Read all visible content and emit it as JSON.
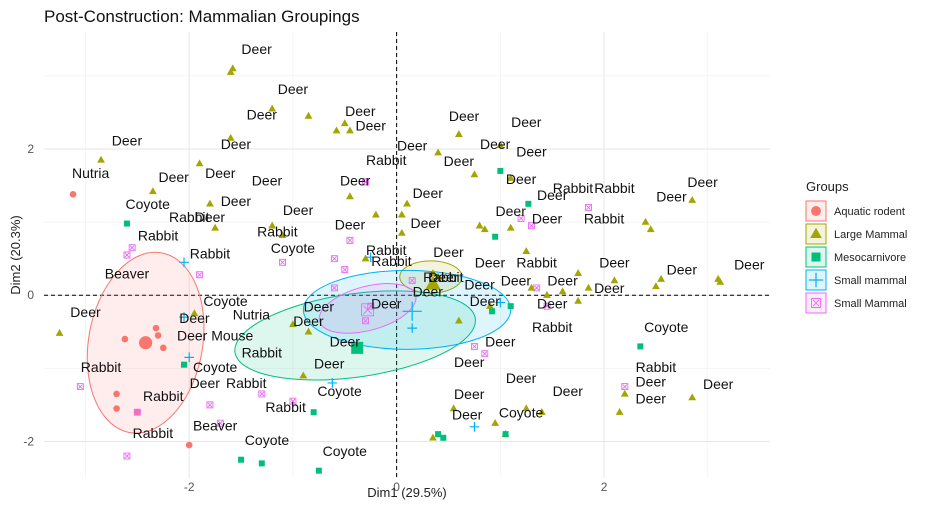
{
  "chart_data": {
    "type": "scatter",
    "title": "Post-Construction: Mammalian Groupings",
    "xlabel": "Dim1 (29.5%)",
    "ylabel": "Dim2 (20.3%)",
    "xlim": [
      -3.4,
      3.6
    ],
    "ylim": [
      -2.5,
      3.6
    ],
    "xticks": [
      -2,
      0,
      2
    ],
    "yticks": [
      -2,
      0,
      2
    ],
    "tick_labels": [
      "-2",
      "0",
      "2"
    ],
    "grid": true,
    "reference_lines": {
      "x": 0,
      "y": 0,
      "style": "dashed"
    },
    "legend": {
      "title": "Groups",
      "position": "right"
    },
    "groups": [
      {
        "name": "Aquatic rodent",
        "color": "#F8766D",
        "shape": "circle"
      },
      {
        "name": "Large Mammal",
        "color": "#A3A500",
        "shape": "triangle"
      },
      {
        "name": "Mesocarnivore",
        "color": "#00BF7D",
        "shape": "square"
      },
      {
        "name": "Small mammal",
        "color": "#00B0F6",
        "shape": "plus"
      },
      {
        "name": "Small Mammal",
        "color": "#E76BF3",
        "shape": "boxed-x"
      }
    ],
    "ellipses": [
      {
        "group": "Aquatic rodent",
        "center": [
          -2.42,
          -0.65
        ],
        "rx": 0.88,
        "ry": 0.78,
        "angle": -80
      },
      {
        "group": "Large Mammal",
        "center": [
          0.33,
          0.25
        ],
        "rx": 0.3,
        "ry": 0.22,
        "angle": 0
      },
      {
        "group": "Mesocarnivore",
        "center": [
          -0.4,
          -0.55
        ],
        "rx": 1.17,
        "ry": 0.57,
        "angle": -8
      },
      {
        "group": "Small mammal",
        "center": [
          0.1,
          -0.2
        ],
        "rx": 1.0,
        "ry": 0.54,
        "angle": 0
      },
      {
        "group": "Small Mammal",
        "center": [
          -0.28,
          -0.18
        ],
        "rx": 0.48,
        "ry": 0.3,
        "angle": -15
      }
    ],
    "centroids": [
      {
        "group": "Aquatic rodent",
        "x": -2.42,
        "y": -0.65
      },
      {
        "group": "Large Mammal",
        "x": 0.35,
        "y": 0.15
      },
      {
        "group": "Mesocarnivore",
        "x": -0.38,
        "y": -0.72
      },
      {
        "group": "Small mammal",
        "x": 0.15,
        "y": -0.22
      },
      {
        "group": "Small Mammal",
        "x": -0.28,
        "y": -0.2
      }
    ],
    "points": [
      {
        "g": 0,
        "x": -3.12,
        "y": 1.38
      },
      {
        "g": 0,
        "x": -2.62,
        "y": -0.6
      },
      {
        "g": 0,
        "x": -2.32,
        "y": -0.45
      },
      {
        "g": 0,
        "x": -2.3,
        "y": -0.55
      },
      {
        "g": 0,
        "x": -2.25,
        "y": -0.72
      },
      {
        "g": 0,
        "x": -2.7,
        "y": -1.35
      },
      {
        "g": 0,
        "x": -2.7,
        "y": -1.55
      },
      {
        "g": 0,
        "x": -2.5,
        "y": -1.6
      },
      {
        "g": 0,
        "x": -2.0,
        "y": -2.05
      },
      {
        "g": 1,
        "x": -1.58,
        "y": 3.1
      },
      {
        "g": 1,
        "x": -1.6,
        "y": 3.05
      },
      {
        "g": 1,
        "x": -1.2,
        "y": 2.55
      },
      {
        "g": 1,
        "x": -0.85,
        "y": 2.45
      },
      {
        "g": 1,
        "x": -1.6,
        "y": 2.15
      },
      {
        "g": 1,
        "x": -2.85,
        "y": 1.85
      },
      {
        "g": 1,
        "x": -1.9,
        "y": 1.8
      },
      {
        "g": 1,
        "x": -2.35,
        "y": 1.42
      },
      {
        "g": 1,
        "x": -1.8,
        "y": 1.25
      },
      {
        "g": 1,
        "x": -1.75,
        "y": 0.92
      },
      {
        "g": 1,
        "x": -1.2,
        "y": 0.95
      },
      {
        "g": 1,
        "x": -3.25,
        "y": -0.52
      },
      {
        "g": 1,
        "x": -1.95,
        "y": -0.25
      },
      {
        "g": 1,
        "x": -1.1,
        "y": 0.82
      },
      {
        "g": 1,
        "x": -0.5,
        "y": 2.35
      },
      {
        "g": 1,
        "x": -0.58,
        "y": 2.25
      },
      {
        "g": 1,
        "x": -0.45,
        "y": 2.25
      },
      {
        "g": 1,
        "x": -0.45,
        "y": 1.35
      },
      {
        "g": 1,
        "x": -0.2,
        "y": 1.1
      },
      {
        "g": 1,
        "x": -0.3,
        "y": 0.5
      },
      {
        "g": 1,
        "x": 0.05,
        "y": 1.1
      },
      {
        "g": 1,
        "x": 0.05,
        "y": 0.85
      },
      {
        "g": 1,
        "x": 0.1,
        "y": 1.25
      },
      {
        "g": 1,
        "x": 0.4,
        "y": 1.95
      },
      {
        "g": 1,
        "x": 0.6,
        "y": 2.2
      },
      {
        "g": 1,
        "x": 0.75,
        "y": 1.65
      },
      {
        "g": 1,
        "x": 0.8,
        "y": 0.95
      },
      {
        "g": 1,
        "x": 0.85,
        "y": 0.9
      },
      {
        "g": 1,
        "x": 1.0,
        "y": 2.05
      },
      {
        "g": 1,
        "x": 1.1,
        "y": 1.6
      },
      {
        "g": 1,
        "x": 1.1,
        "y": 0.92
      },
      {
        "g": 1,
        "x": 1.25,
        "y": 0.6
      },
      {
        "g": 1,
        "x": 1.3,
        "y": 0.1
      },
      {
        "g": 1,
        "x": 1.45,
        "y": 0.0
      },
      {
        "g": 1,
        "x": 1.6,
        "y": 0.05
      },
      {
        "g": 1,
        "x": 1.75,
        "y": 0.3
      },
      {
        "g": 1,
        "x": 1.75,
        "y": -0.08
      },
      {
        "g": 1,
        "x": 1.85,
        "y": 0.1
      },
      {
        "g": 1,
        "x": 2.1,
        "y": 0.2
      },
      {
        "g": 1,
        "x": 2.4,
        "y": 1.0
      },
      {
        "g": 1,
        "x": 2.45,
        "y": 0.9
      },
      {
        "g": 1,
        "x": 2.5,
        "y": 0.12
      },
      {
        "g": 1,
        "x": 2.55,
        "y": 0.22
      },
      {
        "g": 1,
        "x": 2.85,
        "y": 1.3
      },
      {
        "g": 1,
        "x": 3.1,
        "y": 0.22
      },
      {
        "g": 1,
        "x": 3.12,
        "y": 0.18
      },
      {
        "g": 1,
        "x": 2.2,
        "y": -1.35
      },
      {
        "g": 1,
        "x": 2.15,
        "y": -1.6
      },
      {
        "g": 1,
        "x": 2.85,
        "y": -1.4
      },
      {
        "g": 1,
        "x": 0.35,
        "y": 0.3
      },
      {
        "g": 1,
        "x": 0.4,
        "y": 0.25
      },
      {
        "g": 1,
        "x": 0.9,
        "y": -0.15
      },
      {
        "g": 1,
        "x": 0.6,
        "y": -0.35
      },
      {
        "g": 1,
        "x": 0.55,
        "y": -1.55
      },
      {
        "g": 1,
        "x": 0.95,
        "y": -1.75
      },
      {
        "g": 1,
        "x": 1.05,
        "y": -1.9
      },
      {
        "g": 1,
        "x": 1.25,
        "y": -1.55
      },
      {
        "g": 1,
        "x": 1.4,
        "y": -1.6
      },
      {
        "g": 1,
        "x": 0.35,
        "y": -1.95
      },
      {
        "g": 1,
        "x": -0.85,
        "y": -0.5
      },
      {
        "g": 1,
        "x": -1.0,
        "y": -0.4
      },
      {
        "g": 1,
        "x": -0.9,
        "y": -1.1
      },
      {
        "g": 2,
        "x": -2.6,
        "y": 0.98
      },
      {
        "g": 2,
        "x": -2.05,
        "y": -0.95
      },
      {
        "g": 2,
        "x": -1.5,
        "y": -2.25
      },
      {
        "g": 2,
        "x": -1.3,
        "y": -2.3
      },
      {
        "g": 2,
        "x": -0.8,
        "y": -1.6
      },
      {
        "g": 2,
        "x": -0.75,
        "y": -2.4
      },
      {
        "g": 2,
        "x": -0.4,
        "y": -0.72
      },
      {
        "g": 2,
        "x": 0.4,
        "y": -1.9
      },
      {
        "g": 2,
        "x": 0.45,
        "y": -1.95
      },
      {
        "g": 2,
        "x": 0.92,
        "y": -0.22
      },
      {
        "g": 2,
        "x": 0.95,
        "y": 0.8
      },
      {
        "g": 2,
        "x": 1.0,
        "y": 1.7
      },
      {
        "g": 2,
        "x": 1.27,
        "y": 1.25
      },
      {
        "g": 2,
        "x": 1.05,
        "y": -1.9
      },
      {
        "g": 2,
        "x": 1.1,
        "y": -0.15
      },
      {
        "g": 2,
        "x": 2.35,
        "y": -0.7
      },
      {
        "g": 3,
        "x": -2.05,
        "y": 0.45
      },
      {
        "g": 3,
        "x": -2.0,
        "y": -0.85
      },
      {
        "g": 3,
        "x": -2.05,
        "y": -0.3
      },
      {
        "g": 3,
        "x": -0.62,
        "y": -1.2
      },
      {
        "g": 3,
        "x": 0.15,
        "y": -0.45
      },
      {
        "g": 3,
        "x": -0.25,
        "y": 0.52
      },
      {
        "g": 3,
        "x": 0.75,
        "y": -1.8
      },
      {
        "g": 3,
        "x": 1.0,
        "y": -0.1
      },
      {
        "g": 4,
        "x": -2.6,
        "y": 0.55
      },
      {
        "g": 4,
        "x": -2.55,
        "y": 0.65
      },
      {
        "g": 4,
        "x": -1.9,
        "y": 0.28
      },
      {
        "g": 4,
        "x": -1.1,
        "y": 0.45
      },
      {
        "g": 4,
        "x": -0.5,
        "y": 0.35
      },
      {
        "g": 4,
        "x": -0.3,
        "y": 1.55
      },
      {
        "g": 4,
        "x": -0.45,
        "y": 0.75
      },
      {
        "g": 4,
        "x": -0.6,
        "y": 0.5
      },
      {
        "g": 4,
        "x": -0.6,
        "y": 0.1
      },
      {
        "g": 4,
        "x": -0.25,
        "y": -0.15
      },
      {
        "g": 4,
        "x": -0.3,
        "y": -0.35
      },
      {
        "g": 4,
        "x": 0.15,
        "y": 0.2
      },
      {
        "g": 4,
        "x": 1.2,
        "y": 1.05
      },
      {
        "g": 4,
        "x": 1.3,
        "y": 0.95
      },
      {
        "g": 4,
        "x": 1.85,
        "y": 1.2
      },
      {
        "g": 4,
        "x": 1.35,
        "y": 0.1
      },
      {
        "g": 4,
        "x": 1.45,
        "y": -0.15
      },
      {
        "g": 4,
        "x": 0.75,
        "y": -0.7
      },
      {
        "g": 4,
        "x": 0.85,
        "y": -0.8
      },
      {
        "g": 4,
        "x": 2.2,
        "y": -1.25
      },
      {
        "g": 4,
        "x": -3.05,
        "y": -1.25
      },
      {
        "g": 4,
        "x": -2.5,
        "y": -1.6
      },
      {
        "g": 4,
        "x": -2.6,
        "y": -2.2
      },
      {
        "g": 4,
        "x": -1.7,
        "y": -1.75
      },
      {
        "g": 4,
        "x": -1.3,
        "y": -1.35
      },
      {
        "g": 4,
        "x": -1.0,
        "y": -1.45
      },
      {
        "g": 4,
        "x": -1.8,
        "y": -1.5
      }
    ],
    "labels": [
      {
        "text": "Deer",
        "x": -1.35,
        "y": 3.3
      },
      {
        "text": "Deer",
        "x": -1.0,
        "y": 2.75
      },
      {
        "text": "Deer",
        "x": -1.3,
        "y": 2.4
      },
      {
        "text": "Deer",
        "x": -0.35,
        "y": 2.45
      },
      {
        "text": "Deer",
        "x": -0.25,
        "y": 2.25
      },
      {
        "text": "Deer",
        "x": -2.6,
        "y": 2.05
      },
      {
        "text": "Deer",
        "x": -1.55,
        "y": 2.0
      },
      {
        "text": "Nutria",
        "x": -2.95,
        "y": 1.6
      },
      {
        "text": "Deer",
        "x": -2.15,
        "y": 1.55
      },
      {
        "text": "Deer",
        "x": -1.7,
        "y": 1.6
      },
      {
        "text": "Deer",
        "x": -1.25,
        "y": 1.5
      },
      {
        "text": "Coyote",
        "x": -2.4,
        "y": 1.18
      },
      {
        "text": "Deer",
        "x": -1.55,
        "y": 1.22
      },
      {
        "text": "Rabbit",
        "x": -2.0,
        "y": 1.0
      },
      {
        "text": "Deer",
        "x": -1.8,
        "y": 1.0
      },
      {
        "text": "Deer",
        "x": -0.95,
        "y": 1.1
      },
      {
        "text": "Rabbit",
        "x": -2.3,
        "y": 0.75
      },
      {
        "text": "Rabbit",
        "x": -1.15,
        "y": 0.8
      },
      {
        "text": "Coyote",
        "x": -1.0,
        "y": 0.58
      },
      {
        "text": "Rabbit",
        "x": -1.8,
        "y": 0.5
      },
      {
        "text": "Beaver",
        "x": -2.6,
        "y": 0.23
      },
      {
        "text": "Deer",
        "x": -0.45,
        "y": 0.9
      },
      {
        "text": "Deer",
        "x": -0.4,
        "y": 1.5
      },
      {
        "text": "Rabbit",
        "x": -0.1,
        "y": 1.78
      },
      {
        "text": "Deer",
        "x": 0.15,
        "y": 1.98
      },
      {
        "text": "Deer",
        "x": 0.65,
        "y": 2.38
      },
      {
        "text": "Deer",
        "x": 1.25,
        "y": 2.3
      },
      {
        "text": "Deer",
        "x": 0.95,
        "y": 2.0
      },
      {
        "text": "Deer",
        "x": 0.6,
        "y": 1.77
      },
      {
        "text": "Deer",
        "x": 1.3,
        "y": 1.9
      },
      {
        "text": "Deer",
        "x": 1.2,
        "y": 1.52
      },
      {
        "text": "Rabbit",
        "x": 1.7,
        "y": 1.4
      },
      {
        "text": "Rabbit",
        "x": 2.1,
        "y": 1.4
      },
      {
        "text": "Deer",
        "x": 1.5,
        "y": 1.3
      },
      {
        "text": "Deer",
        "x": 2.65,
        "y": 1.28
      },
      {
        "text": "Deer",
        "x": 2.95,
        "y": 1.48
      },
      {
        "text": "Deer",
        "x": 1.1,
        "y": 1.08
      },
      {
        "text": "Deer",
        "x": 1.45,
        "y": 0.98
      },
      {
        "text": "Rabbit",
        "x": 2.0,
        "y": 0.98
      },
      {
        "text": "Deer",
        "x": 0.3,
        "y": 1.33
      },
      {
        "text": "Deer",
        "x": 0.28,
        "y": 0.92
      },
      {
        "text": "Deer",
        "x": 0.5,
        "y": 0.52
      },
      {
        "text": "Rabbit",
        "x": -0.1,
        "y": 0.55
      },
      {
        "text": "Rabbit",
        "x": -0.05,
        "y": 0.4
      },
      {
        "text": "Deer",
        "x": 0.9,
        "y": 0.38
      },
      {
        "text": "Rabbit",
        "x": 1.35,
        "y": 0.38
      },
      {
        "text": "Deer",
        "x": 0.45,
        "y": 0.18
      },
      {
        "text": "Rabbit",
        "x": 0.45,
        "y": 0.18
      },
      {
        "text": "Deer",
        "x": 0.8,
        "y": 0.08
      },
      {
        "text": "Deer",
        "x": 1.15,
        "y": 0.13
      },
      {
        "text": "Deer",
        "x": 1.6,
        "y": 0.13
      },
      {
        "text": "Deer",
        "x": 2.1,
        "y": 0.38
      },
      {
        "text": "Deer",
        "x": 2.05,
        "y": 0.03
      },
      {
        "text": "Deer",
        "x": 2.75,
        "y": 0.28
      },
      {
        "text": "Deer",
        "x": 3.4,
        "y": 0.35
      },
      {
        "text": "Deer",
        "x": 0.3,
        "y": -0.02
      },
      {
        "text": "Deer",
        "x": 0.85,
        "y": -0.15
      },
      {
        "text": "Deer",
        "x": 1.5,
        "y": -0.18
      },
      {
        "text": "Rabbit",
        "x": 1.5,
        "y": -0.5
      },
      {
        "text": "Deer",
        "x": -0.75,
        "y": -0.22
      },
      {
        "text": "Deer",
        "x": -0.85,
        "y": -0.42
      },
      {
        "text": "Deer",
        "x": -0.1,
        "y": -0.18
      },
      {
        "text": "Coyote",
        "x": -1.65,
        "y": -0.15
      },
      {
        "text": "Nutria",
        "x": -1.4,
        "y": -0.33
      },
      {
        "text": "Deer",
        "x": -3.0,
        "y": -0.3
      },
      {
        "text": "Deer",
        "x": -1.95,
        "y": -0.38
      },
      {
        "text": "Deer Mouse",
        "x": -1.75,
        "y": -0.62
      },
      {
        "text": "Rabbit",
        "x": -1.3,
        "y": -0.85
      },
      {
        "text": "Deer",
        "x": -0.5,
        "y": -0.7
      },
      {
        "text": "Deer",
        "x": -0.65,
        "y": -1.0
      },
      {
        "text": "Deer",
        "x": 1.0,
        "y": -0.7
      },
      {
        "text": "Deer",
        "x": 0.7,
        "y": -0.98
      },
      {
        "text": "Coyote",
        "x": -1.75,
        "y": -1.05
      },
      {
        "text": "Deer",
        "x": -1.85,
        "y": -1.27
      },
      {
        "text": "Rabbit",
        "x": -1.45,
        "y": -1.27
      },
      {
        "text": "Coyote",
        "x": -0.55,
        "y": -1.38
      },
      {
        "text": "Deer",
        "x": 0.7,
        "y": -1.42
      },
      {
        "text": "Deer",
        "x": 1.2,
        "y": -1.2
      },
      {
        "text": "Deer",
        "x": 1.65,
        "y": -1.38
      },
      {
        "text": "Deer",
        "x": 2.45,
        "y": -1.25
      },
      {
        "text": "Deer",
        "x": 3.1,
        "y": -1.28
      },
      {
        "text": "Rabbit",
        "x": 2.5,
        "y": -1.05
      },
      {
        "text": "Deer",
        "x": 2.45,
        "y": -1.48
      },
      {
        "text": "Coyote",
        "x": 2.6,
        "y": -0.5
      },
      {
        "text": "Rabbit",
        "x": -2.85,
        "y": -1.05
      },
      {
        "text": "Rabbit",
        "x": -2.25,
        "y": -1.45
      },
      {
        "text": "Rabbit",
        "x": -2.35,
        "y": -1.95
      },
      {
        "text": "Rabbit",
        "x": -1.07,
        "y": -1.6
      },
      {
        "text": "Beaver",
        "x": -1.75,
        "y": -1.85
      },
      {
        "text": "Coyote",
        "x": -1.25,
        "y": -2.05
      },
      {
        "text": "Coyote",
        "x": -0.5,
        "y": -2.2
      },
      {
        "text": "Deer",
        "x": 0.68,
        "y": -1.7
      },
      {
        "text": "Coyote",
        "x": 1.2,
        "y": -1.67
      }
    ]
  }
}
